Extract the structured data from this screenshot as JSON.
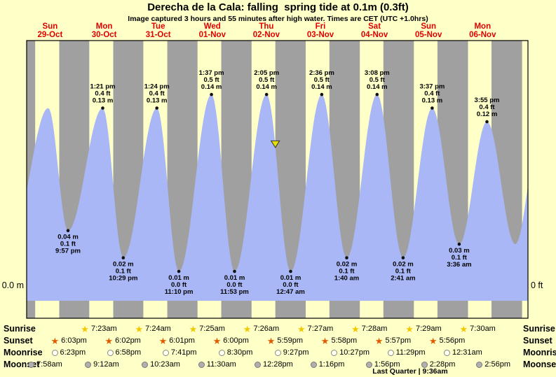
{
  "colors": {
    "background": "#ffffc8",
    "night_band": "#a0a0a0",
    "tide_fill": "#a9b7f7",
    "day_label_red": "#e00000",
    "sunrise_star": "#f0c800",
    "sunset_star": "#e05a00",
    "moonrise_fill": "#fffff2",
    "moonset_fill": "#b0b0b0",
    "marker_yellow": "#e6df00",
    "dot": "#111111"
  },
  "chart_data": {
    "type": "area",
    "title": "Derecha de la Cala: falling  spring tide at 0.1m (0.3ft)",
    "subtitle": "Image captured 3 hours and 55 minutes after high water. Times are CET (UTC +1.0hrs)",
    "axis": {
      "left_label": "0.0 m",
      "right_label": "0 ft"
    },
    "days": [
      {
        "name": "Sun",
        "date": "29-Oct"
      },
      {
        "name": "Mon",
        "date": "30-Oct"
      },
      {
        "name": "Tue",
        "date": "31-Oct"
      },
      {
        "name": "Wed",
        "date": "01-Nov"
      },
      {
        "name": "Thu",
        "date": "02-Nov"
      },
      {
        "name": "Fri",
        "date": "03-Nov"
      },
      {
        "name": "Sat",
        "date": "04-Nov"
      },
      {
        "name": "Sun",
        "date": "05-Nov"
      },
      {
        "name": "Mon",
        "date": "06-Nov"
      }
    ],
    "tide_events": [
      {
        "kind": "low",
        "day": 0,
        "time": "9:57 pm",
        "height_m": 0.04,
        "height_ft": 0.1,
        "lines": [
          "0.04 m",
          "0.1 ft",
          "9:57 pm"
        ]
      },
      {
        "kind": "high",
        "day": 1,
        "time": "1:21 pm",
        "height_m": 0.13,
        "height_ft": 0.4,
        "lines": [
          "1:21 pm",
          "0.4 ft",
          "0.13 m"
        ]
      },
      {
        "kind": "low",
        "day": 1,
        "time": "10:29 pm",
        "height_m": 0.02,
        "height_ft": 0.1,
        "lines": [
          "0.02 m",
          "0.1 ft",
          "10:29 pm"
        ]
      },
      {
        "kind": "high",
        "day": 2,
        "time": "1:24 pm",
        "height_m": 0.13,
        "height_ft": 0.4,
        "lines": [
          "1:24 pm",
          "0.4 ft",
          "0.13 m"
        ]
      },
      {
        "kind": "low",
        "day": 2,
        "time": "11:10 pm",
        "height_m": 0.01,
        "height_ft": 0.0,
        "lines": [
          "0.01 m",
          "0.0 ft",
          "11:10 pm"
        ]
      },
      {
        "kind": "high",
        "day": 3,
        "time": "1:37 pm",
        "height_m": 0.14,
        "height_ft": 0.5,
        "lines": [
          "1:37 pm",
          "0.5 ft",
          "0.14 m"
        ]
      },
      {
        "kind": "low",
        "day": 3,
        "time": "11:53 pm",
        "height_m": 0.01,
        "height_ft": 0.0,
        "lines": [
          "0.01 m",
          "0.0 ft",
          "11:53 pm"
        ]
      },
      {
        "kind": "high",
        "day": 4,
        "time": "2:05 pm",
        "height_m": 0.14,
        "height_ft": 0.5,
        "lines": [
          "2:05 pm",
          "0.5 ft",
          "0.14 m"
        ]
      },
      {
        "kind": "low",
        "day": 5,
        "time": "12:47 am",
        "height_m": 0.01,
        "height_ft": 0.0,
        "lines": [
          "0.01 m",
          "0.0 ft",
          "12:47 am"
        ]
      },
      {
        "kind": "high",
        "day": 5,
        "time": "2:36 pm",
        "height_m": 0.14,
        "height_ft": 0.5,
        "lines": [
          "2:36 pm",
          "0.5 ft",
          "0.14 m"
        ]
      },
      {
        "kind": "low",
        "day": 6,
        "time": "1:40 am",
        "height_m": 0.02,
        "height_ft": 0.1,
        "lines": [
          "0.02 m",
          "0.1 ft",
          "1:40 am"
        ]
      },
      {
        "kind": "high",
        "day": 6,
        "time": "3:08 pm",
        "height_m": 0.14,
        "height_ft": 0.5,
        "lines": [
          "3:08 pm",
          "0.5 ft",
          "0.14 m"
        ]
      },
      {
        "kind": "low",
        "day": 7,
        "time": "2:41 am",
        "height_m": 0.02,
        "height_ft": 0.1,
        "lines": [
          "0.02 m",
          "0.1 ft",
          "2:41 am"
        ]
      },
      {
        "kind": "high",
        "day": 7,
        "time": "3:37 pm",
        "height_m": 0.13,
        "height_ft": 0.4,
        "lines": [
          "3:37 pm",
          "0.4 ft",
          "0.13 m"
        ]
      },
      {
        "kind": "low",
        "day": 8,
        "time": "3:36 am",
        "height_m": 0.03,
        "height_ft": 0.1,
        "lines": [
          "0.03 m",
          "0.1 ft",
          "3:36 am"
        ]
      },
      {
        "kind": "high",
        "day": 8,
        "time": "3:55 pm",
        "height_m": 0.12,
        "height_ft": 0.4,
        "lines": [
          "3:55 pm",
          "0.4 ft",
          "0.12 m"
        ]
      }
    ],
    "curve_padding_points": [
      {
        "t_hours": -2.5,
        "height_m": 0.04
      },
      {
        "t_hours": 13.2,
        "height_m": 0.13
      },
      {
        "t_hours": 220.5,
        "height_m": 0.03
      },
      {
        "t_hours": 232.0,
        "height_m": 0.12
      }
    ],
    "current_marker": {
      "day": 4,
      "time": "6:00 pm",
      "height_m": 0.1
    }
  },
  "astro": {
    "rows": [
      {
        "id": "sunrise",
        "label": "Sunrise",
        "entries": [
          {
            "day": 1,
            "time": "7:23am"
          },
          {
            "day": 2,
            "time": "7:24am"
          },
          {
            "day": 3,
            "time": "7:25am"
          },
          {
            "day": 4,
            "time": "7:26am"
          },
          {
            "day": 5,
            "time": "7:27am"
          },
          {
            "day": 6,
            "time": "7:28am"
          },
          {
            "day": 7,
            "time": "7:29am"
          },
          {
            "day": 8,
            "time": "7:30am"
          }
        ]
      },
      {
        "id": "sunset",
        "label": "Sunset",
        "entries": [
          {
            "day": 0,
            "time": "6:03pm"
          },
          {
            "day": 1,
            "time": "6:02pm"
          },
          {
            "day": 2,
            "time": "6:01pm"
          },
          {
            "day": 3,
            "time": "6:00pm"
          },
          {
            "day": 4,
            "time": "5:59pm"
          },
          {
            "day": 5,
            "time": "5:58pm"
          },
          {
            "day": 6,
            "time": "5:57pm"
          },
          {
            "day": 7,
            "time": "5:56pm"
          }
        ]
      },
      {
        "id": "moonrise",
        "label": "Moonrise",
        "entries": [
          {
            "day": 0,
            "time": "6:23pm"
          },
          {
            "day": 1,
            "time": "6:58pm"
          },
          {
            "day": 2,
            "time": "7:41pm"
          },
          {
            "day": 3,
            "time": "8:30pm"
          },
          {
            "day": 4,
            "time": "9:27pm"
          },
          {
            "day": 5,
            "time": "10:27pm"
          },
          {
            "day": 6,
            "time": "11:29pm"
          },
          {
            "day": 8,
            "time": "12:31am"
          }
        ]
      },
      {
        "id": "moonset",
        "label": "Moonset",
        "entries": [
          {
            "day": 0,
            "time": "7:58am"
          },
          {
            "day": 1,
            "time": "9:12am"
          },
          {
            "day": 2,
            "time": "10:23am"
          },
          {
            "day": 3,
            "time": "11:30am"
          },
          {
            "day": 4,
            "time": "12:28pm"
          },
          {
            "day": 5,
            "time": "1:16pm"
          },
          {
            "day": 6,
            "time": "1:56pm"
          },
          {
            "day": 7,
            "time": "2:28pm"
          },
          {
            "day": 8,
            "time": "2:56pm"
          }
        ]
      }
    ],
    "footer": "Last Quarter | 9:36am"
  }
}
